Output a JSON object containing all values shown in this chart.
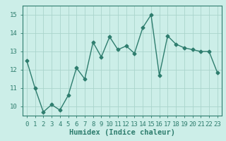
{
  "x": [
    0,
    1,
    2,
    3,
    4,
    5,
    6,
    7,
    8,
    9,
    10,
    11,
    12,
    13,
    14,
    15,
    16,
    17,
    18,
    19,
    20,
    21,
    22,
    23
  ],
  "y": [
    12.5,
    11.0,
    9.7,
    10.1,
    9.8,
    10.6,
    12.1,
    11.5,
    13.5,
    12.7,
    13.8,
    13.1,
    13.3,
    12.9,
    14.3,
    15.0,
    11.7,
    13.85,
    13.4,
    13.2,
    13.1,
    13.0,
    13.0,
    11.85
  ],
  "line_color": "#2e7d6e",
  "marker": "D",
  "marker_size": 2.5,
  "line_width": 1.0,
  "xlabel": "Humidex (Indice chaleur)",
  "ylim": [
    9.5,
    15.5
  ],
  "yticks": [
    10,
    11,
    12,
    13,
    14,
    15
  ],
  "xtick_labels": [
    "0",
    "1",
    "2",
    "3",
    "4",
    "5",
    "6",
    "7",
    "8",
    "9",
    "10",
    "11",
    "12",
    "13",
    "14",
    "15",
    "16",
    "17",
    "18",
    "19",
    "20",
    "21",
    "22",
    "23"
  ],
  "bg_color": "#cceee8",
  "grid_color": "#aad4cc",
  "xlabel_fontsize": 7.5,
  "tick_fontsize": 6.5
}
